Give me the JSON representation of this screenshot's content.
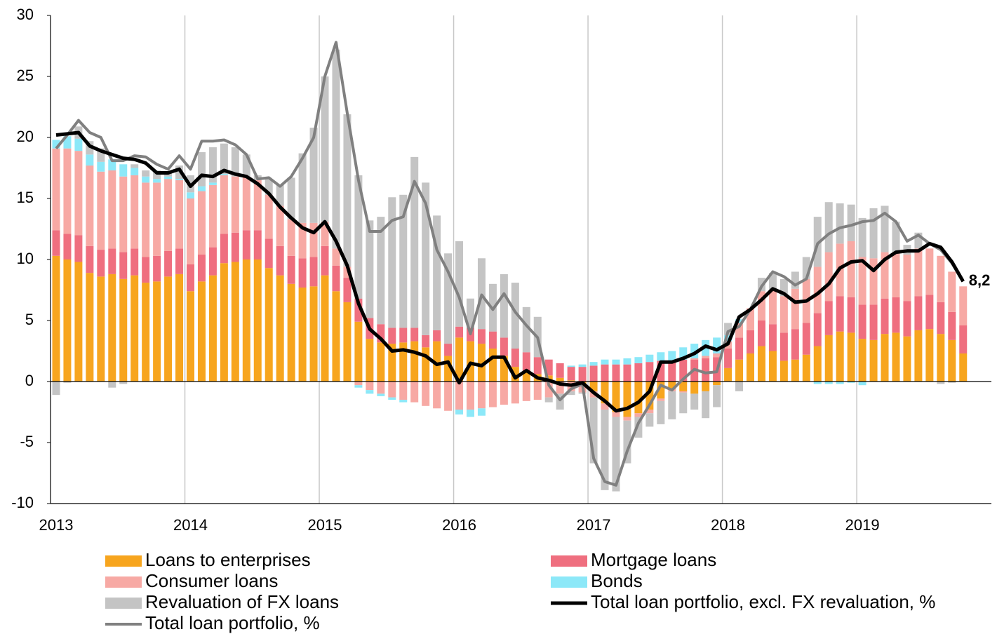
{
  "chart_data": {
    "type": "bar",
    "categories": [
      "2013",
      null,
      null,
      null,
      null,
      null,
      null,
      null,
      null,
      null,
      null,
      null,
      "2014",
      null,
      null,
      null,
      null,
      null,
      null,
      null,
      null,
      null,
      null,
      null,
      "2015",
      null,
      null,
      null,
      null,
      null,
      null,
      null,
      null,
      null,
      null,
      null,
      "2016",
      null,
      null,
      null,
      null,
      null,
      null,
      null,
      null,
      null,
      null,
      null,
      "2017",
      null,
      null,
      null,
      null,
      null,
      null,
      null,
      null,
      null,
      null,
      null,
      "2018",
      null,
      null,
      null,
      null,
      null,
      null,
      null,
      null,
      null,
      null,
      null,
      "2019",
      null,
      null,
      null,
      null,
      null,
      null,
      null,
      null,
      null
    ],
    "ylim": [
      -10,
      30
    ],
    "yticks": [
      -10,
      -5,
      0,
      5,
      10,
      15,
      20,
      25,
      30
    ],
    "grid": "x",
    "series": [
      {
        "name": "Loans to enterprises",
        "type": "bar",
        "color": "#f7a51e",
        "values": [
          10.3,
          10.0,
          9.8,
          8.9,
          8.6,
          8.8,
          8.4,
          8.7,
          8.1,
          8.2,
          8.6,
          8.8,
          7.4,
          8.2,
          8.7,
          9.7,
          9.8,
          10.0,
          10.0,
          9.3,
          8.7,
          8.0,
          7.7,
          7.8,
          8.7,
          7.4,
          6.5,
          4.9,
          3.5,
          3.2,
          3.1,
          3.2,
          3.3,
          2.8,
          3.3,
          2.1,
          3.6,
          3.3,
          3.1,
          2.7,
          2.1,
          1.2,
          0.9,
          0.6,
          0.5,
          0.3,
          0.1,
          -0.2,
          -0.8,
          -1.8,
          -2.5,
          -2.9,
          -2.6,
          -2.3,
          -1.4,
          -0.6,
          -0.8,
          -1.0,
          -0.8,
          -0.3,
          1.1,
          1.8,
          2.3,
          2.9,
          2.5,
          1.7,
          1.8,
          2.2,
          2.9,
          3.8,
          4.1,
          4.0,
          3.5,
          3.4,
          3.9,
          4.0,
          3.7,
          4.2,
          4.3,
          3.9,
          3.4,
          2.3
        ]
      },
      {
        "name": "Mortgage loans",
        "type": "bar",
        "color": "#ef6f7f",
        "values": [
          2.1,
          2.1,
          2.2,
          2.2,
          2.2,
          2.1,
          2.2,
          2.2,
          2.1,
          2.1,
          2.1,
          2.1,
          2.2,
          2.2,
          2.3,
          2.4,
          2.4,
          2.4,
          2.4,
          2.4,
          2.4,
          2.3,
          2.4,
          2.4,
          2.4,
          2.1,
          2.0,
          1.9,
          1.7,
          1.5,
          1.3,
          1.2,
          1.1,
          1.0,
          0.9,
          1.0,
          0.9,
          1.1,
          1.2,
          1.4,
          1.5,
          1.5,
          1.5,
          1.4,
          1.3,
          1.2,
          1.1,
          1.2,
          1.3,
          1.4,
          1.4,
          1.4,
          1.5,
          1.6,
          1.7,
          1.7,
          1.8,
          1.8,
          1.9,
          2.0,
          1.6,
          1.8,
          1.9,
          2.1,
          2.2,
          2.3,
          2.5,
          2.6,
          2.7,
          2.8,
          2.9,
          2.9,
          2.8,
          2.9,
          2.9,
          2.9,
          2.9,
          2.8,
          2.8,
          2.6,
          2.3,
          2.3
        ]
      },
      {
        "name": "Consumer loans",
        "type": "bar",
        "color": "#f7a9a4",
        "values": [
          6.7,
          7.0,
          6.9,
          6.6,
          6.4,
          6.4,
          6.2,
          6.0,
          6.1,
          6.0,
          5.9,
          5.6,
          5.4,
          5.2,
          5.1,
          4.8,
          4.6,
          4.4,
          4.1,
          3.6,
          3.3,
          3.0,
          2.9,
          2.8,
          2.0,
          1.4,
          0.9,
          -0.3,
          -0.7,
          -1.0,
          -1.3,
          -1.5,
          -1.7,
          -2.0,
          -2.2,
          -2.4,
          -2.3,
          -2.3,
          -2.2,
          -2.1,
          -1.9,
          -1.8,
          -1.6,
          -1.5,
          -1.3,
          -1.0,
          -0.8,
          -0.7,
          -0.5,
          -0.5,
          -0.4,
          -0.3,
          -0.3,
          -0.3,
          -0.2,
          -0.2,
          -0.1,
          0.1,
          0.2,
          0.3,
          0.6,
          1.2,
          1.8,
          2.4,
          2.8,
          3.0,
          3.3,
          3.6,
          3.8,
          4.0,
          4.3,
          4.6,
          3.9,
          3.8,
          3.8,
          3.7,
          3.8,
          3.9,
          3.8,
          3.8,
          3.3,
          3.2
        ]
      },
      {
        "name": "Bonds",
        "type": "bar",
        "color": "#8ce8f8",
        "values": [
          0.7,
          1.0,
          1.0,
          0.9,
          0.8,
          0.9,
          1.0,
          0.6,
          0.5,
          0.3,
          0.2,
          0.1,
          0.5,
          0.4,
          0.2,
          0.1,
          0,
          0,
          0,
          0,
          0,
          0,
          0,
          0,
          0,
          0,
          0,
          -0.2,
          -0.3,
          -0.2,
          -0.2,
          -0.2,
          0,
          0,
          0,
          0,
          -0.4,
          -0.6,
          -0.6,
          0,
          0,
          0,
          0,
          0,
          0,
          0,
          0.1,
          0.2,
          0.3,
          0.4,
          0.4,
          0.5,
          0.5,
          0.6,
          0.7,
          0.8,
          1.0,
          1.2,
          1.3,
          1.3,
          0.5,
          0.3,
          0,
          0,
          0,
          0,
          0,
          0,
          -0.2,
          -0.2,
          -0.2,
          -0.1,
          -0.3,
          0,
          0,
          0,
          0,
          0,
          0,
          0,
          0,
          0
        ]
      },
      {
        "name": "Revaluation of FX loans",
        "type": "bar",
        "color": "#c4c4c4",
        "values": [
          -1.1,
          -0.1,
          1.0,
          1.1,
          1.1,
          -0.5,
          -0.2,
          0.3,
          0.5,
          0.7,
          0.3,
          1.1,
          1.4,
          2.8,
          2.9,
          2.5,
          2.4,
          1.8,
          0.4,
          1.3,
          1.7,
          3.4,
          5.7,
          7.8,
          11.9,
          16.3,
          12.5,
          10.1,
          8.0,
          8.8,
          10.7,
          10.9,
          14.0,
          12.5,
          9.4,
          7.4,
          7.0,
          2.4,
          5.8,
          3.9,
          5.2,
          5.4,
          3.7,
          3.3,
          -0.4,
          -1.3,
          -0.3,
          -0.1,
          -5.4,
          -6.6,
          -6.1,
          -3.5,
          -1.7,
          -1.1,
          -1.9,
          -2.3,
          -1.7,
          -1.3,
          -2.2,
          -1.8,
          1.0,
          -0.8,
          0,
          1.1,
          1.4,
          1.4,
          1.4,
          1.8,
          4.1,
          4.1,
          3.3,
          3.0,
          3.2,
          4.1,
          3.8,
          2.5,
          0.8,
          1.3,
          0,
          -0.2,
          -0.1,
          0
        ]
      },
      {
        "name": "Total loan portfolio, excl. FX revaluation, %",
        "type": "line",
        "color": "#000000",
        "values": [
          20.2,
          20.3,
          20.4,
          19.3,
          18.9,
          18.6,
          18.3,
          18.2,
          17.9,
          17.1,
          17.1,
          17.4,
          16.0,
          16.9,
          16.8,
          17.3,
          17.0,
          16.8,
          16.2,
          15.4,
          14.3,
          13.4,
          12.6,
          12.2,
          13.1,
          11.5,
          9.5,
          6.4,
          4.3,
          3.5,
          2.5,
          2.6,
          2.4,
          2.1,
          1.4,
          1.6,
          -0.1,
          1.5,
          1.3,
          2.0,
          2.0,
          0.3,
          0.9,
          0.3,
          0.1,
          -0.2,
          -0.3,
          -0.1,
          -0.9,
          -1.6,
          -2.4,
          -2.2,
          -1.7,
          -0.8,
          1.6,
          1.6,
          1.9,
          2.3,
          2.9,
          2.6,
          3.1,
          5.3,
          5.9,
          6.7,
          7.6,
          7.2,
          6.5,
          6.6,
          7.2,
          8.0,
          9.3,
          9.8,
          9.9,
          9.1,
          10.0,
          10.6,
          10.7,
          10.7,
          11.3,
          11.0,
          9.8,
          8.2
        ],
        "value_labels": [
          null,
          null,
          null,
          null,
          null,
          null,
          null,
          null,
          null,
          null,
          null,
          null,
          null,
          null,
          null,
          null,
          null,
          null,
          null,
          null,
          null,
          null,
          null,
          null,
          null,
          null,
          null,
          null,
          null,
          null,
          null,
          null,
          null,
          null,
          null,
          null,
          null,
          null,
          null,
          null,
          null,
          null,
          null,
          null,
          null,
          null,
          null,
          null,
          null,
          null,
          null,
          null,
          null,
          null,
          null,
          null,
          null,
          null,
          null,
          null,
          null,
          null,
          null,
          null,
          null,
          null,
          null,
          null,
          null,
          null,
          null,
          null,
          null,
          null,
          null,
          null,
          null,
          null,
          null,
          null,
          null,
          "8,2"
        ]
      },
      {
        "name": "Total loan portfolio, %",
        "type": "line",
        "color": "#808080",
        "values": [
          19.1,
          20.2,
          21.4,
          20.4,
          20.0,
          18.1,
          18.1,
          18.5,
          18.4,
          17.8,
          17.4,
          18.5,
          17.4,
          19.7,
          19.7,
          19.8,
          19.4,
          18.6,
          16.6,
          16.7,
          16.0,
          16.8,
          18.3,
          20.0,
          25.0,
          27.8,
          22.0,
          16.5,
          12.3,
          12.3,
          13.2,
          13.5,
          16.4,
          14.6,
          10.8,
          9.0,
          6.9,
          3.9,
          7.1,
          5.9,
          7.2,
          5.7,
          4.6,
          3.6,
          -0.3,
          -1.5,
          -0.6,
          -0.2,
          -6.3,
          -8.2,
          -8.5,
          -5.7,
          -3.4,
          -1.9,
          -0.3,
          -0.7,
          0.2,
          1.0,
          0.7,
          0.8,
          4.1,
          4.5,
          5.9,
          7.8,
          9.0,
          8.6,
          7.9,
          8.4,
          11.3,
          12.1,
          12.6,
          12.8,
          13.1,
          13.2,
          13.8,
          13.1,
          11.5,
          12.0,
          11.3,
          10.8,
          9.7,
          8.2
        ]
      }
    ]
  }
}
